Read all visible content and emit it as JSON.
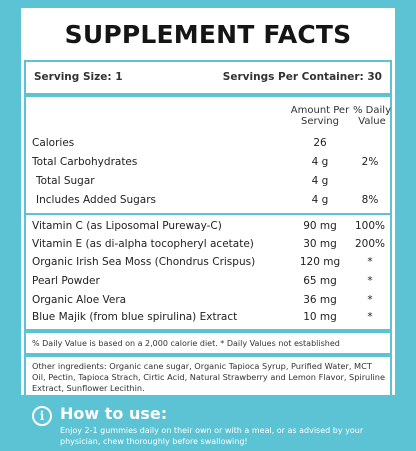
{
  "title": "SUPPLEMENT FACTS",
  "serving": {
    "size": "Serving Size: 1",
    "per_container": "Servings Per Container: 30"
  },
  "header": {
    "amount": "Amount Per Serving",
    "daily_value": "% Daily Value"
  },
  "nutrients": [
    {
      "name": "Calories",
      "amount": "26",
      "dv": ""
    },
    {
      "name": "Total Carbohydrates",
      "amount": "4 g",
      "dv": "2%"
    },
    {
      "name": "Total Sugar",
      "amount": "4 g",
      "dv": ""
    },
    {
      "name": "Includes Added Sugars",
      "amount": "4 g",
      "dv": "8%"
    }
  ],
  "ingredients": [
    {
      "name": "Vitamin C (as Liposomal Pureway-C)",
      "amount": "90 mg",
      "dv": "100%"
    },
    {
      "name": "Vitamin E (as di-alpha tocopheryl acetate)",
      "amount": "30 mg",
      "dv": "200%"
    },
    {
      "name": "Organic Irish Sea Moss (Chondrus Crispus)",
      "amount": "120 mg",
      "dv": "*"
    },
    {
      "name": "Pearl Powder",
      "amount": "65 mg",
      "dv": "*"
    },
    {
      "name": "Organic Aloe Vera",
      "amount": "36 mg",
      "dv": "*"
    },
    {
      "name": "Blue Majik (from blue spirulina) Extract",
      "amount": "10 mg",
      "dv": "*"
    }
  ],
  "daily_value_note": "% Daily Value is based on a 2,000 calorie diet. * Daily Values not established",
  "other_ingredients": "Other ingredients: Organic cane sugar, Organic Tapioca Syrup, Purified Water, MCT Oil, Pectin, Tapioca Strach, Cirtic Acid, Natural Strawberry and Lemon Flavor, Spiruline Extract, Sunflower Lecithin.",
  "how_to_use": {
    "title": "How to use:",
    "text": "Enjoy 2-1 gummies daily on their own or with a meal, or as advised by your physician, chew thoroughly before swallowing!"
  },
  "colors": {
    "accent": "#5bc3d3",
    "panel": "#ffffff",
    "text": "#222222"
  }
}
